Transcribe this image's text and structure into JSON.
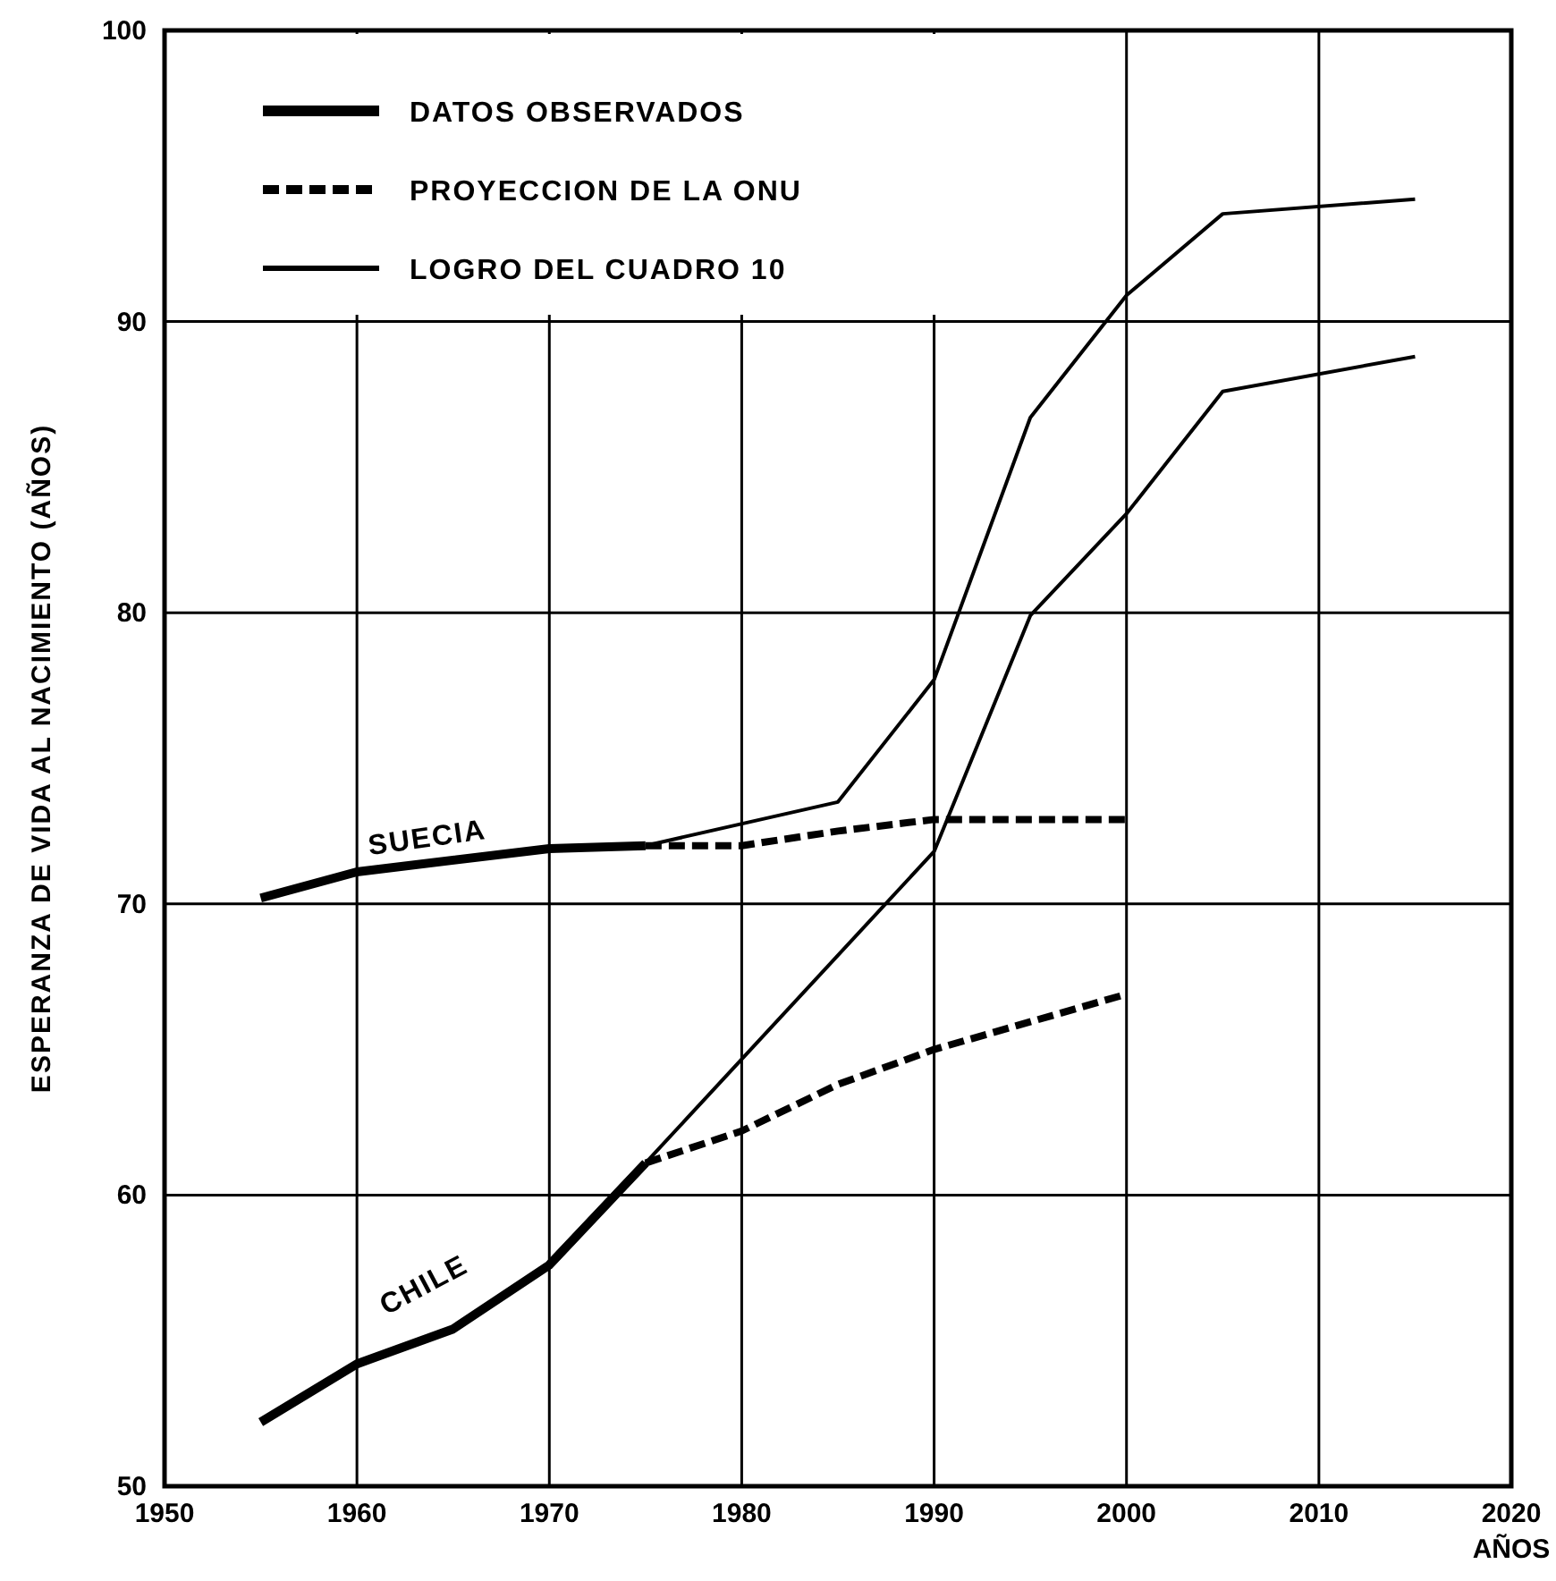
{
  "chart_data": {
    "type": "line",
    "xlabel": "AÑOS",
    "ylabel": "ESPERANZA DE VIDA AL NACIMIENTO (AÑOS)",
    "xlim": [
      1950,
      2020
    ],
    "xticks": [
      1950,
      1960,
      1970,
      1980,
      1990,
      2000,
      2010,
      2020
    ],
    "ylim": [
      50,
      100
    ],
    "yticks": [
      50,
      60,
      70,
      80,
      90,
      100
    ],
    "grid": true,
    "legend": "top left",
    "series": [
      {
        "name": "DATOS OBSERVADOS",
        "color": "#000000",
        "line_style": "solid",
        "x": [
          1955,
          1960,
          1970,
          1975
        ],
        "values": [
          70.2,
          71.1,
          71.9,
          72.0
        ]
      },
      {
        "name": "PROYECCION DE LA ONU",
        "color": "#000000",
        "line_style": "dashed",
        "x": [
          1975,
          1980,
          1985,
          1990,
          2000
        ],
        "values": [
          72.0,
          72.0,
          72.5,
          72.9,
          72.9
        ]
      },
      {
        "name": "LOGRO DEL CUADRO 10",
        "color": "#000000",
        "line_style": "solid",
        "x": [
          1975,
          1985,
          1990,
          1995,
          2000,
          2005,
          2015
        ],
        "values": [
          72.0,
          73.5,
          77.7,
          86.7,
          90.9,
          93.7,
          94.2
        ]
      },
      {
        "color": "#000000",
        "line_style": "solid",
        "x": [
          1955,
          1960,
          1965,
          1970,
          1975
        ],
        "values": [
          52.2,
          54.2,
          55.4,
          57.6,
          61.1
        ]
      },
      {
        "color": "#000000",
        "line_style": "dashed",
        "x": [
          1975,
          1980,
          1985,
          1990,
          2000
        ],
        "values": [
          61.1,
          62.2,
          63.8,
          65.0,
          66.9
        ]
      },
      {
        "color": "#000000",
        "line_style": "solid",
        "x": [
          1975,
          1990,
          1995,
          2000,
          2005,
          2015
        ],
        "values": [
          61.1,
          71.8,
          79.9,
          83.4,
          87.6,
          88.8
        ]
      }
    ],
    "annotations": [
      {
        "text": "SUECIA",
        "x": 1960,
        "y": 71.1
      },
      {
        "text": "CHILE",
        "x": 1965,
        "y": 55.4
      }
    ]
  }
}
